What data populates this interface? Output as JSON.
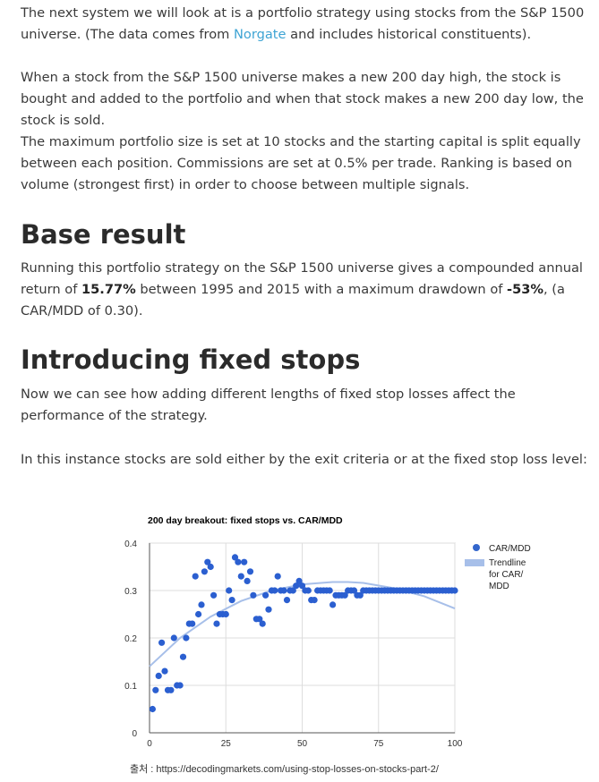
{
  "intro": {
    "p1_a": "The next system we will look at is a portfolio strategy using stocks from the S&P 1500 universe. (The data comes from ",
    "p1_link": "Norgate",
    "p1_b": " and includes historical constituents).",
    "p2": "When a stock from the S&P 1500 universe makes a new 200 day high, the stock is bought and added to the portfolio and when that stock makes a new 200 day low, the stock is sold.",
    "p3": "The maximum portfolio size is set at 10 stocks and the starting capital is split equally between each position. Commissions are set at 0.5% per trade. Ranking is based on volume (strongest first) in order to choose between multiple signals."
  },
  "base_result": {
    "heading": "Base result",
    "text_a": "Running this portfolio strategy on the S&P 1500 universe gives a compounded annual return of ",
    "cagr": "15.77%",
    "text_b": " between 1995 and 2015 with a maximum drawdown of ",
    "mdd": "-53%",
    "text_c": ", (a CAR/MDD of 0.30)."
  },
  "fixed_stops": {
    "heading": "Introducing fixed stops",
    "p1": "Now we can see how adding different lengths of fixed stop losses affect the performance of the strategy.",
    "p2": "In this instance stocks are sold either by the exit criteria or at the fixed stop loss level:"
  },
  "chart_data": {
    "type": "scatter",
    "title": "200 day breakout: fixed stops vs. CAR/MDD",
    "xlabel": "",
    "ylabel": "",
    "xlim": [
      0,
      100
    ],
    "ylim": [
      0,
      0.4
    ],
    "x_ticks": [
      "0",
      "25",
      "50",
      "75",
      "100"
    ],
    "y_ticks": [
      "0",
      "0.1",
      "0.2",
      "0.3",
      "0.4"
    ],
    "grid": true,
    "legend_position": "right",
    "legend": [
      {
        "label": "CAR/MDD",
        "kind": "dot",
        "color": "#3366cc"
      },
      {
        "label": "Trendline for CAR/ MDD",
        "lines": [
          "Trendline",
          "for CAR/",
          "MDD"
        ],
        "kind": "band",
        "color": "#a7bfe9"
      }
    ],
    "colors": {
      "points": "#2b5fd0",
      "trend": "#a7bfe9",
      "grid": "#dddddd",
      "axis": "#555555"
    },
    "series": [
      {
        "name": "CAR/MDD",
        "x": [
          1,
          2,
          3,
          4,
          5,
          6,
          7,
          8,
          9,
          10,
          11,
          12,
          13,
          14,
          15,
          16,
          17,
          18,
          19,
          20,
          21,
          22,
          23,
          24,
          25,
          26,
          27,
          28,
          29,
          30,
          31,
          32,
          33,
          34,
          35,
          36,
          37,
          38,
          39,
          40,
          41,
          42,
          43,
          44,
          45,
          46,
          47,
          48,
          49,
          50,
          51,
          52,
          53,
          54,
          55,
          56,
          57,
          58,
          59,
          60,
          61,
          62,
          63,
          64,
          65,
          66,
          67,
          68,
          69,
          70,
          71,
          72,
          73,
          74,
          75,
          76,
          77,
          78,
          79,
          80,
          81,
          82,
          83,
          84,
          85,
          86,
          87,
          88,
          89,
          90,
          91,
          92,
          93,
          94,
          95,
          96,
          97,
          98,
          99,
          100
        ],
        "y": [
          0.05,
          0.09,
          0.12,
          0.19,
          0.13,
          0.09,
          0.09,
          0.2,
          0.1,
          0.1,
          0.16,
          0.2,
          0.23,
          0.23,
          0.33,
          0.25,
          0.27,
          0.34,
          0.36,
          0.35,
          0.29,
          0.23,
          0.25,
          0.25,
          0.25,
          0.3,
          0.28,
          0.37,
          0.36,
          0.33,
          0.36,
          0.32,
          0.34,
          0.29,
          0.24,
          0.24,
          0.23,
          0.29,
          0.26,
          0.3,
          0.3,
          0.33,
          0.3,
          0.3,
          0.28,
          0.3,
          0.3,
          0.31,
          0.32,
          0.31,
          0.3,
          0.3,
          0.28,
          0.28,
          0.3,
          0.3,
          0.3,
          0.3,
          0.3,
          0.27,
          0.29,
          0.29,
          0.29,
          0.29,
          0.3,
          0.3,
          0.3,
          0.29,
          0.29,
          0.3,
          0.3,
          0.3,
          0.3,
          0.3,
          0.3,
          0.3,
          0.3,
          0.3,
          0.3,
          0.3,
          0.3,
          0.3,
          0.3,
          0.3,
          0.3,
          0.3,
          0.3,
          0.3,
          0.3,
          0.3,
          0.3,
          0.3,
          0.3,
          0.3,
          0.3,
          0.3,
          0.3,
          0.3,
          0.3,
          0.3
        ]
      },
      {
        "name": "Trendline for CAR/ MDD",
        "x": [
          0,
          10,
          20,
          30,
          40,
          50,
          60,
          65,
          70,
          80,
          90,
          100
        ],
        "y": [
          0.14,
          0.2,
          0.245,
          0.278,
          0.3,
          0.313,
          0.318,
          0.318,
          0.316,
          0.305,
          0.288,
          0.262
        ]
      }
    ]
  },
  "source": {
    "label": "출처 : ",
    "url": "https://decodingmarkets.com/using-stop-losses-on-stocks-part-2/"
  }
}
